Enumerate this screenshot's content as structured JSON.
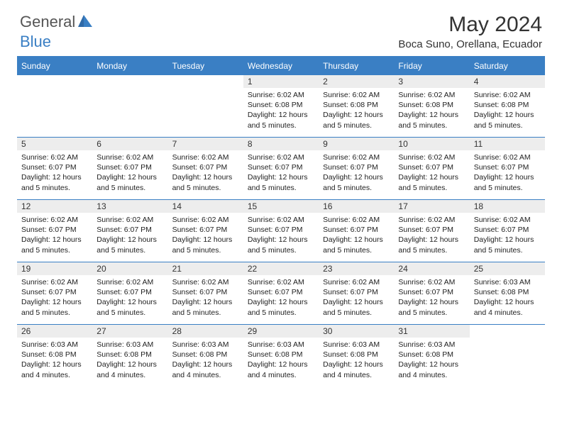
{
  "brand": {
    "general": "General",
    "blue": "Blue"
  },
  "title": "May 2024",
  "location": "Boca Suno, Orellana, Ecuador",
  "colors": {
    "header_bg": "#3a7fc4",
    "header_text": "#ffffff",
    "daynum_bg": "#ededed",
    "border": "#3a7fc4",
    "logo_gray": "#555555",
    "logo_blue": "#3a7fc4"
  },
  "day_headers": [
    "Sunday",
    "Monday",
    "Tuesday",
    "Wednesday",
    "Thursday",
    "Friday",
    "Saturday"
  ],
  "weeks": [
    [
      {
        "n": "",
        "sr": "",
        "ss": "",
        "dl": ""
      },
      {
        "n": "",
        "sr": "",
        "ss": "",
        "dl": ""
      },
      {
        "n": "",
        "sr": "",
        "ss": "",
        "dl": ""
      },
      {
        "n": "1",
        "sr": "Sunrise: 6:02 AM",
        "ss": "Sunset: 6:08 PM",
        "dl": "Daylight: 12 hours and 5 minutes."
      },
      {
        "n": "2",
        "sr": "Sunrise: 6:02 AM",
        "ss": "Sunset: 6:08 PM",
        "dl": "Daylight: 12 hours and 5 minutes."
      },
      {
        "n": "3",
        "sr": "Sunrise: 6:02 AM",
        "ss": "Sunset: 6:08 PM",
        "dl": "Daylight: 12 hours and 5 minutes."
      },
      {
        "n": "4",
        "sr": "Sunrise: 6:02 AM",
        "ss": "Sunset: 6:08 PM",
        "dl": "Daylight: 12 hours and 5 minutes."
      }
    ],
    [
      {
        "n": "5",
        "sr": "Sunrise: 6:02 AM",
        "ss": "Sunset: 6:07 PM",
        "dl": "Daylight: 12 hours and 5 minutes."
      },
      {
        "n": "6",
        "sr": "Sunrise: 6:02 AM",
        "ss": "Sunset: 6:07 PM",
        "dl": "Daylight: 12 hours and 5 minutes."
      },
      {
        "n": "7",
        "sr": "Sunrise: 6:02 AM",
        "ss": "Sunset: 6:07 PM",
        "dl": "Daylight: 12 hours and 5 minutes."
      },
      {
        "n": "8",
        "sr": "Sunrise: 6:02 AM",
        "ss": "Sunset: 6:07 PM",
        "dl": "Daylight: 12 hours and 5 minutes."
      },
      {
        "n": "9",
        "sr": "Sunrise: 6:02 AM",
        "ss": "Sunset: 6:07 PM",
        "dl": "Daylight: 12 hours and 5 minutes."
      },
      {
        "n": "10",
        "sr": "Sunrise: 6:02 AM",
        "ss": "Sunset: 6:07 PM",
        "dl": "Daylight: 12 hours and 5 minutes."
      },
      {
        "n": "11",
        "sr": "Sunrise: 6:02 AM",
        "ss": "Sunset: 6:07 PM",
        "dl": "Daylight: 12 hours and 5 minutes."
      }
    ],
    [
      {
        "n": "12",
        "sr": "Sunrise: 6:02 AM",
        "ss": "Sunset: 6:07 PM",
        "dl": "Daylight: 12 hours and 5 minutes."
      },
      {
        "n": "13",
        "sr": "Sunrise: 6:02 AM",
        "ss": "Sunset: 6:07 PM",
        "dl": "Daylight: 12 hours and 5 minutes."
      },
      {
        "n": "14",
        "sr": "Sunrise: 6:02 AM",
        "ss": "Sunset: 6:07 PM",
        "dl": "Daylight: 12 hours and 5 minutes."
      },
      {
        "n": "15",
        "sr": "Sunrise: 6:02 AM",
        "ss": "Sunset: 6:07 PM",
        "dl": "Daylight: 12 hours and 5 minutes."
      },
      {
        "n": "16",
        "sr": "Sunrise: 6:02 AM",
        "ss": "Sunset: 6:07 PM",
        "dl": "Daylight: 12 hours and 5 minutes."
      },
      {
        "n": "17",
        "sr": "Sunrise: 6:02 AM",
        "ss": "Sunset: 6:07 PM",
        "dl": "Daylight: 12 hours and 5 minutes."
      },
      {
        "n": "18",
        "sr": "Sunrise: 6:02 AM",
        "ss": "Sunset: 6:07 PM",
        "dl": "Daylight: 12 hours and 5 minutes."
      }
    ],
    [
      {
        "n": "19",
        "sr": "Sunrise: 6:02 AM",
        "ss": "Sunset: 6:07 PM",
        "dl": "Daylight: 12 hours and 5 minutes."
      },
      {
        "n": "20",
        "sr": "Sunrise: 6:02 AM",
        "ss": "Sunset: 6:07 PM",
        "dl": "Daylight: 12 hours and 5 minutes."
      },
      {
        "n": "21",
        "sr": "Sunrise: 6:02 AM",
        "ss": "Sunset: 6:07 PM",
        "dl": "Daylight: 12 hours and 5 minutes."
      },
      {
        "n": "22",
        "sr": "Sunrise: 6:02 AM",
        "ss": "Sunset: 6:07 PM",
        "dl": "Daylight: 12 hours and 5 minutes."
      },
      {
        "n": "23",
        "sr": "Sunrise: 6:02 AM",
        "ss": "Sunset: 6:07 PM",
        "dl": "Daylight: 12 hours and 5 minutes."
      },
      {
        "n": "24",
        "sr": "Sunrise: 6:02 AM",
        "ss": "Sunset: 6:07 PM",
        "dl": "Daylight: 12 hours and 5 minutes."
      },
      {
        "n": "25",
        "sr": "Sunrise: 6:03 AM",
        "ss": "Sunset: 6:08 PM",
        "dl": "Daylight: 12 hours and 4 minutes."
      }
    ],
    [
      {
        "n": "26",
        "sr": "Sunrise: 6:03 AM",
        "ss": "Sunset: 6:08 PM",
        "dl": "Daylight: 12 hours and 4 minutes."
      },
      {
        "n": "27",
        "sr": "Sunrise: 6:03 AM",
        "ss": "Sunset: 6:08 PM",
        "dl": "Daylight: 12 hours and 4 minutes."
      },
      {
        "n": "28",
        "sr": "Sunrise: 6:03 AM",
        "ss": "Sunset: 6:08 PM",
        "dl": "Daylight: 12 hours and 4 minutes."
      },
      {
        "n": "29",
        "sr": "Sunrise: 6:03 AM",
        "ss": "Sunset: 6:08 PM",
        "dl": "Daylight: 12 hours and 4 minutes."
      },
      {
        "n": "30",
        "sr": "Sunrise: 6:03 AM",
        "ss": "Sunset: 6:08 PM",
        "dl": "Daylight: 12 hours and 4 minutes."
      },
      {
        "n": "31",
        "sr": "Sunrise: 6:03 AM",
        "ss": "Sunset: 6:08 PM",
        "dl": "Daylight: 12 hours and 4 minutes."
      },
      {
        "n": "",
        "sr": "",
        "ss": "",
        "dl": ""
      }
    ]
  ]
}
